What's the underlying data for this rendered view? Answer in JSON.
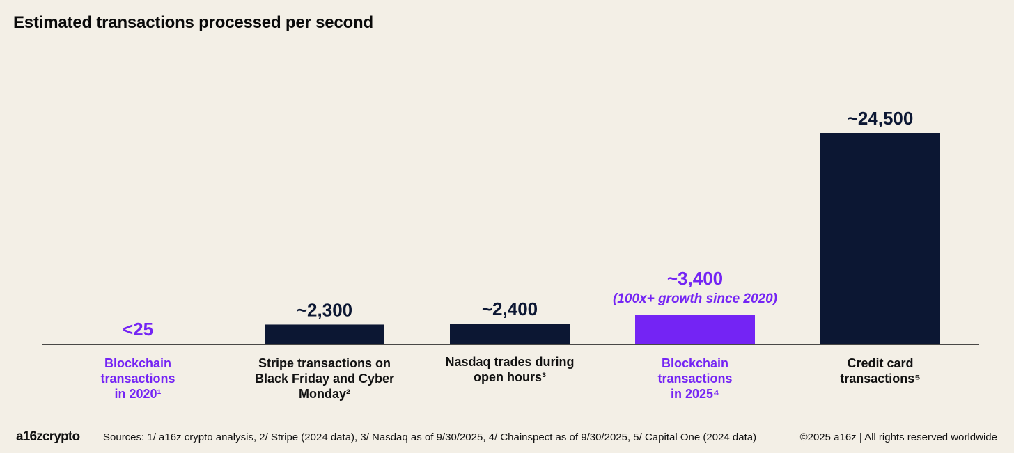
{
  "colors": {
    "background": "#f3efe6",
    "navy": "#0c1733",
    "purple": "#7424f4"
  },
  "footer": {
    "logo": "a16zcrypto",
    "sources": "Sources: 1/ a16z crypto analysis, 2/ Stripe (2024 data), 3/ Nasdaq as of 9/30/2025, 4/ Chainspect as of 9/30/2025, 5/ Capital One (2024 data)",
    "copyright": "©2025 a16z | All rights reserved worldwide"
  },
  "chart_data": {
    "type": "bar",
    "title": "Estimated transactions processed per second",
    "xlabel": "",
    "ylabel": "",
    "ylim": [
      0,
      24500
    ],
    "grid": false,
    "categories": [
      [
        "Blockchain",
        "transactions",
        "in 2020¹"
      ],
      [
        "Stripe transactions on",
        "Black Friday and Cyber",
        "Monday²"
      ],
      [
        "Nasdaq trades during",
        "open hours³"
      ],
      [
        "Blockchain",
        "transactions",
        "in 2025⁴"
      ],
      [
        "Credit card",
        "transactions⁵"
      ]
    ],
    "values": [
      25,
      2300,
      2400,
      3400,
      24500
    ],
    "value_labels": [
      "<25",
      "~2,300",
      "~2,400",
      "~3,400",
      "~24,500"
    ],
    "annotations": [
      "",
      "",
      "",
      "(100x+ growth since 2020)",
      ""
    ],
    "highlight": [
      true,
      false,
      false,
      true,
      false
    ]
  }
}
